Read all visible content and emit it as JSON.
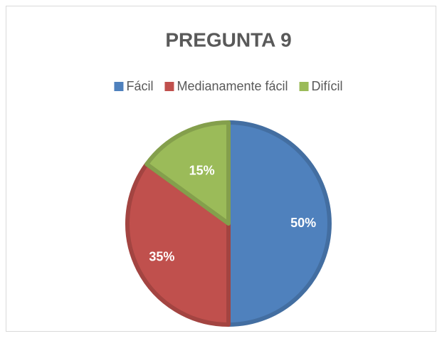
{
  "chart_data": {
    "type": "pie",
    "title": "PREGUNTA 9",
    "categories": [
      "Fácil",
      "Medianamente fácil",
      "Difícil"
    ],
    "values": [
      50,
      35,
      15
    ],
    "value_labels": [
      "50%",
      "35%",
      "15%"
    ],
    "colors": [
      "#4f81bd",
      "#c0504d",
      "#9bbb59"
    ],
    "legend": "top"
  }
}
